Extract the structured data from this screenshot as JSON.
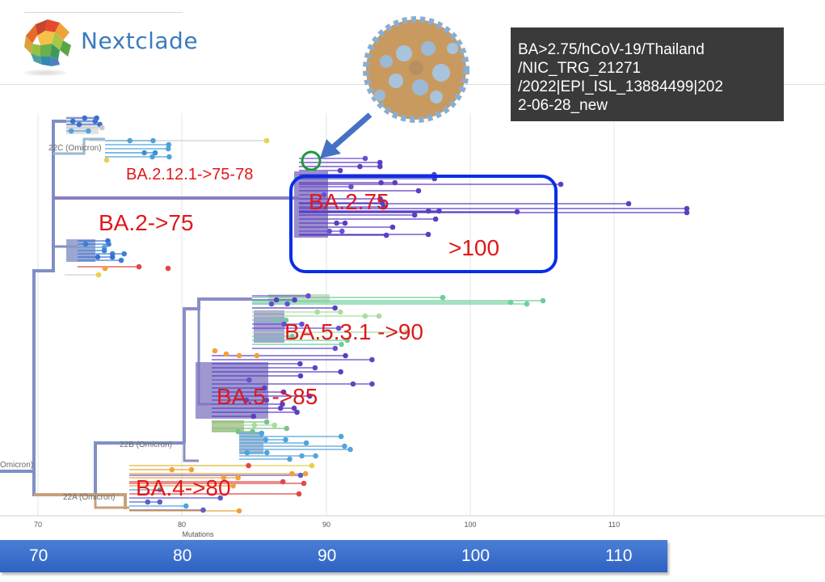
{
  "app": {
    "name": "Nextclade"
  },
  "tooltip": {
    "lines": [
      "BA>2.75/hCoV-19/Thailand",
      "/NIC_TRG_21271",
      "/2022|EPI_ISL_13884499|202",
      "2-06-28_new"
    ]
  },
  "tree": {
    "clades": [
      {
        "label": "22C (Omicron)"
      },
      {
        "label": "22B (Omicron)"
      },
      {
        "label": "22A (Omicron)"
      },
      {
        "label": "Omicron)"
      }
    ],
    "axis": {
      "title": "Mutations",
      "ticks": [
        "70",
        "80",
        "90",
        "100",
        "110"
      ]
    }
  },
  "annotations": {
    "ba2121": "BA.2.12.1->75-78",
    "ba2": "BA.2->75",
    "ba275": "BA.2.75",
    "over100": ">100",
    "ba531": "BA.5.3.1 ->90",
    "ba5": "BA.5 ->85",
    "ba4": "BA.4->80"
  },
  "mutation_bar": {
    "ticks": [
      "70",
      "80",
      "90",
      "100",
      "110"
    ]
  },
  "colors": {
    "annotation": "#e0181b",
    "highlight_box": "#0a2ee6",
    "circle": "#1d9a3a",
    "axis_bar": "#3a6fcd",
    "arrow": "#4472c4"
  }
}
